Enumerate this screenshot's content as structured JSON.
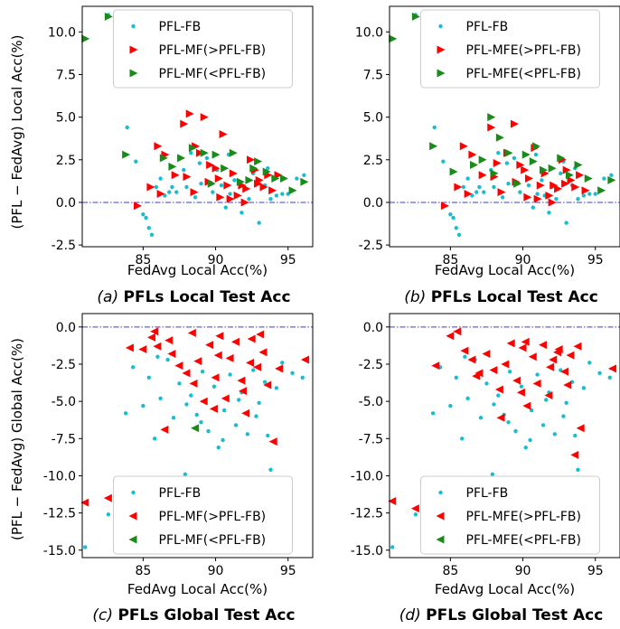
{
  "figure": {
    "ylabel_top": "(PFL − FedAvg) Local Acc(%)",
    "ylabel_bottom": "(PFL − FedAvg) Global Acc(%)"
  },
  "chart_data": [
    {
      "id": "a",
      "type": "scatter",
      "caption_letter": "(a)",
      "caption_title": "PFLs Local Test Acc",
      "xlabel": "FedAvg Local Acc(%)",
      "ylabel": "(PFL − FedAvg) Local Acc(%)",
      "xlim": [
        80.8,
        96.7
      ],
      "ylim": [
        -2.6,
        11.5
      ],
      "xticks": [
        85,
        90,
        95
      ],
      "yticks": [
        -2.5,
        0.0,
        2.5,
        5.0,
        7.5,
        10.0
      ],
      "hline": 0,
      "legend_position": "top-center",
      "colors": {
        "fb": "#17becf",
        "gt": "#ff0000",
        "lt": "#1a8a1a",
        "hline": "#3b3bd9"
      },
      "series": [
        {
          "name": "PFL-FB",
          "marker": "dot",
          "color": "#17becf",
          "x": [
            81.0,
            82.6,
            83.9,
            84.5,
            85.0,
            85.2,
            85.4,
            85.6,
            85.9,
            86.2,
            86.5,
            87.0,
            87.3,
            87.8,
            88.0,
            88.3,
            88.6,
            89.0,
            89.4,
            89.8,
            90.1,
            90.4,
            90.7,
            91.0,
            91.3,
            91.5,
            91.8,
            92.0,
            92.3,
            92.6,
            93.0,
            93.4,
            93.8,
            94.2,
            94.6,
            95.0,
            95.6,
            96.1,
            88.9,
            90.9,
            92.8,
            86.8,
            93.6
          ],
          "y": [
            9.6,
            11.0,
            4.4,
            2.4,
            -0.7,
            -0.9,
            -1.5,
            -1.9,
            0.9,
            1.4,
            0.4,
            0.9,
            0.6,
            1.9,
            0.9,
            2.9,
            0.3,
            1.1,
            2.6,
            0.6,
            1.9,
            1.0,
            -0.3,
            0.5,
            1.3,
            0.4,
            -0.6,
            0.9,
            0.2,
            1.7,
            -1.2,
            1.0,
            0.2,
            0.4,
            0.5,
            0.5,
            1.4,
            1.6,
            2.3,
            2.8,
            2.4,
            0.6,
            2.0
          ]
        },
        {
          "name": "PFL-MF(>PFL-FB)",
          "marker": "tri-right",
          "color": "#ff0000",
          "x": [
            84.6,
            85.5,
            86.0,
            86.5,
            87.2,
            87.8,
            88.2,
            88.5,
            88.9,
            89.2,
            89.6,
            90.0,
            90.2,
            90.5,
            90.8,
            91.2,
            91.5,
            91.8,
            92.1,
            92.4,
            92.7,
            93.0,
            93.3,
            93.6,
            93.9,
            94.3,
            88.0,
            89.5,
            91.0,
            92.0,
            86.2,
            90.3,
            92.9,
            88.6
          ],
          "y": [
            -0.2,
            0.9,
            3.3,
            2.8,
            1.6,
            4.6,
            5.2,
            0.6,
            2.9,
            5.0,
            2.2,
            2.0,
            1.4,
            4.0,
            1.0,
            1.7,
            0.4,
            1.0,
            0.8,
            2.5,
            1.9,
            1.3,
            0.9,
            1.6,
            0.7,
            1.6,
            1.5,
            1.2,
            0.2,
            0.0,
            0.5,
            0.3,
            1.1,
            3.3
          ]
        },
        {
          "name": "PFL-MF(<PFL-FB)",
          "marker": "tri-right",
          "color": "#1a8a1a",
          "x": [
            81.0,
            82.6,
            83.8,
            87.0,
            87.6,
            88.4,
            89.2,
            90.0,
            90.6,
            91.2,
            91.7,
            92.3,
            92.9,
            93.5,
            94.1,
            94.7,
            95.3,
            96.1,
            86.4,
            89.7,
            92.6
          ],
          "y": [
            9.6,
            10.9,
            2.8,
            2.1,
            2.6,
            3.2,
            2.9,
            2.8,
            2.0,
            2.9,
            1.2,
            1.3,
            2.4,
            1.8,
            1.4,
            1.4,
            0.7,
            1.2,
            2.6,
            1.1,
            2.0
          ]
        }
      ]
    },
    {
      "id": "b",
      "type": "scatter",
      "caption_letter": "(b)",
      "caption_title": "PFLs Local Test Acc",
      "xlabel": "FedAvg Local Acc(%)",
      "ylabel": "",
      "xlim": [
        80.8,
        96.7
      ],
      "ylim": [
        -2.6,
        11.5
      ],
      "xticks": [
        85,
        90,
        95
      ],
      "yticks": [
        -2.5,
        0.0,
        2.5,
        5.0,
        7.5,
        10.0
      ],
      "hline": 0,
      "legend_position": "top-center",
      "colors": {
        "fb": "#17becf",
        "gt": "#ff0000",
        "lt": "#1a8a1a",
        "hline": "#3b3bd9"
      },
      "series": [
        {
          "name": "PFL-FB",
          "marker": "dot",
          "color": "#17becf",
          "x": [
            81.0,
            82.6,
            83.9,
            84.5,
            85.0,
            85.2,
            85.4,
            85.6,
            85.9,
            86.2,
            86.5,
            87.0,
            87.3,
            87.8,
            88.0,
            88.3,
            88.6,
            89.0,
            89.4,
            89.8,
            90.1,
            90.4,
            90.7,
            91.0,
            91.3,
            91.5,
            91.8,
            92.0,
            92.3,
            92.6,
            93.0,
            93.4,
            93.8,
            94.2,
            94.6,
            95.0,
            95.6,
            96.1,
            88.9,
            90.9,
            92.8,
            86.8,
            93.6
          ],
          "y": [
            9.6,
            11.0,
            4.4,
            2.4,
            -0.7,
            -0.9,
            -1.5,
            -1.9,
            0.9,
            1.4,
            0.4,
            0.9,
            0.6,
            1.9,
            0.9,
            2.9,
            0.3,
            1.1,
            2.6,
            0.6,
            1.9,
            1.0,
            -0.3,
            0.5,
            1.3,
            0.4,
            -0.6,
            0.9,
            0.2,
            1.7,
            -1.2,
            1.0,
            0.2,
            0.4,
            0.5,
            0.5,
            1.4,
            1.6,
            2.3,
            2.8,
            2.4,
            0.6,
            2.0
          ]
        },
        {
          "name": "PFL-MFE(>PFL-FB)",
          "marker": "tri-right",
          "color": "#ff0000",
          "x": [
            84.6,
            85.5,
            85.9,
            86.5,
            87.2,
            87.8,
            88.2,
            88.5,
            88.9,
            89.4,
            89.8,
            90.1,
            90.4,
            90.8,
            91.2,
            91.5,
            91.8,
            92.1,
            92.4,
            92.7,
            93.0,
            93.3,
            93.6,
            93.9,
            94.3,
            88.0,
            89.5,
            91.0,
            92.0,
            86.2,
            90.3,
            92.9
          ],
          "y": [
            -0.2,
            0.9,
            3.3,
            2.8,
            1.6,
            4.4,
            2.3,
            0.6,
            2.9,
            4.6,
            2.2,
            1.9,
            1.4,
            3.2,
            1.0,
            1.7,
            0.4,
            1.0,
            0.8,
            2.5,
            1.9,
            1.3,
            0.9,
            1.6,
            0.7,
            1.5,
            1.2,
            0.2,
            0.0,
            0.5,
            0.3,
            1.1
          ]
        },
        {
          "name": "PFL-MFE(<PFL-FB)",
          "marker": "tri-right",
          "color": "#1a8a1a",
          "x": [
            81.0,
            82.6,
            83.8,
            85.2,
            86.6,
            87.2,
            87.8,
            88.4,
            89.0,
            89.6,
            90.2,
            90.9,
            91.4,
            92.0,
            92.6,
            93.2,
            93.8,
            94.5,
            95.4,
            96.1,
            88.0,
            90.7
          ],
          "y": [
            9.6,
            10.9,
            3.3,
            1.8,
            2.2,
            2.5,
            5.0,
            3.8,
            2.9,
            1.1,
            2.8,
            3.3,
            1.9,
            2.0,
            2.6,
            1.6,
            2.2,
            1.4,
            0.7,
            1.3,
            1.7,
            2.4
          ]
        }
      ]
    },
    {
      "id": "c",
      "type": "scatter",
      "caption_letter": "(c)",
      "caption_title": "PFLs Global Test Acc",
      "xlabel": "FedAvg Local Acc(%)",
      "ylabel": "(PFL − FedAvg) Global Acc(%)",
      "xlim": [
        80.8,
        96.7
      ],
      "ylim": [
        -15.5,
        0.9
      ],
      "xticks": [
        85,
        90,
        95
      ],
      "yticks": [
        -15.0,
        -12.5,
        -10.0,
        -7.5,
        -5.0,
        -2.5,
        0.0
      ],
      "hline": 0,
      "legend_position": "bottom-center",
      "colors": {
        "fb": "#17becf",
        "gt": "#ff0000",
        "lt": "#1a8a1a",
        "hline": "#3b3bd9"
      },
      "series": [
        {
          "name": "PFL-FB",
          "marker": "dot",
          "color": "#17becf",
          "x": [
            81.0,
            82.6,
            83.8,
            84.3,
            85.0,
            85.4,
            85.8,
            86.2,
            86.7,
            87.1,
            87.5,
            87.9,
            88.3,
            88.7,
            89.1,
            89.5,
            89.9,
            90.2,
            90.6,
            91.0,
            91.4,
            91.8,
            92.2,
            92.6,
            93.0,
            93.4,
            93.8,
            94.2,
            94.6,
            95.3,
            96.0,
            88.0,
            89.0,
            90.5,
            91.6,
            92.8,
            86.0,
            93.6
          ],
          "y": [
            -14.8,
            -12.6,
            -5.8,
            -2.7,
            -5.3,
            -3.4,
            -7.5,
            -4.8,
            -2.2,
            -6.1,
            -3.8,
            -9.9,
            -4.6,
            -5.9,
            -3.0,
            -7.0,
            -4.0,
            -8.1,
            -5.6,
            -3.2,
            -6.6,
            -4.4,
            -7.2,
            -2.9,
            -5.1,
            -3.7,
            -9.6,
            -4.1,
            -2.4,
            -3.1,
            -3.4,
            -5.2,
            -6.4,
            -7.6,
            -4.9,
            -6.0,
            -2.0,
            -7.3
          ]
        },
        {
          "name": "PFL-MF(>PFL-FB)",
          "marker": "tri-left",
          "color": "#ff0000",
          "x": [
            81.0,
            82.6,
            84.1,
            85.0,
            85.6,
            86.0,
            86.5,
            87.0,
            87.5,
            88.0,
            88.4,
            88.8,
            89.2,
            89.6,
            90.0,
            90.3,
            90.7,
            91.0,
            91.4,
            91.8,
            92.1,
            92.5,
            92.9,
            93.3,
            93.6,
            94.0,
            94.4,
            96.2,
            86.8,
            88.5,
            90.2,
            91.9,
            93.1,
            89.9,
            92.4,
            85.8
          ],
          "y": [
            -11.8,
            -11.5,
            -1.4,
            -1.5,
            -0.7,
            -1.3,
            -6.9,
            -1.8,
            -2.6,
            -3.1,
            -0.4,
            -2.3,
            -5.0,
            -1.2,
            -3.4,
            -0.6,
            -4.8,
            -2.1,
            -1.0,
            -3.6,
            -5.8,
            -0.8,
            -2.7,
            -1.7,
            -3.9,
            -7.7,
            -2.8,
            -2.2,
            -0.9,
            -3.8,
            -1.9,
            -4.3,
            -0.5,
            -5.5,
            -2.4,
            -0.3
          ]
        },
        {
          "name": "PFL-MF(<PFL-FB)",
          "marker": "tri-left",
          "color": "#1a8a1a",
          "x": [
            88.6
          ],
          "y": [
            -6.8
          ]
        }
      ]
    },
    {
      "id": "d",
      "type": "scatter",
      "caption_letter": "(d)",
      "caption_title": "PFLs Global Test Acc",
      "xlabel": "FedAvg Local Acc(%)",
      "ylabel": "",
      "xlim": [
        80.8,
        96.7
      ],
      "ylim": [
        -15.5,
        0.9
      ],
      "xticks": [
        85,
        90,
        95
      ],
      "yticks": [
        -15.0,
        -12.5,
        -10.0,
        -7.5,
        -5.0,
        -2.5,
        0.0
      ],
      "hline": 0,
      "legend_position": "bottom-center",
      "colors": {
        "fb": "#17becf",
        "gt": "#ff0000",
        "lt": "#1a8a1a",
        "hline": "#3b3bd9"
      },
      "series": [
        {
          "name": "PFL-FB",
          "marker": "dot",
          "color": "#17becf",
          "x": [
            81.0,
            82.6,
            83.8,
            84.3,
            85.0,
            85.4,
            85.8,
            86.2,
            86.7,
            87.1,
            87.5,
            87.9,
            88.3,
            88.7,
            89.1,
            89.5,
            89.9,
            90.2,
            90.6,
            91.0,
            91.4,
            91.8,
            92.2,
            92.6,
            93.0,
            93.4,
            93.8,
            94.2,
            94.6,
            95.3,
            96.0,
            88.0,
            89.0,
            90.5,
            91.6,
            92.8,
            86.0,
            93.6
          ],
          "y": [
            -14.8,
            -12.6,
            -5.8,
            -2.7,
            -5.3,
            -3.4,
            -7.5,
            -4.8,
            -2.2,
            -6.1,
            -3.8,
            -9.9,
            -4.6,
            -5.9,
            -3.0,
            -7.0,
            -4.0,
            -8.1,
            -5.6,
            -3.2,
            -6.6,
            -4.4,
            -7.2,
            -2.9,
            -5.1,
            -3.7,
            -9.6,
            -4.1,
            -2.4,
            -3.1,
            -3.4,
            -5.2,
            -6.4,
            -7.6,
            -4.9,
            -6.0,
            -2.0,
            -7.3
          ]
        },
        {
          "name": "PFL-MFE(>PFL-FB)",
          "marker": "tri-left",
          "color": "#ff0000",
          "x": [
            81.0,
            82.6,
            84.0,
            85.0,
            85.5,
            86.0,
            86.5,
            87.0,
            87.5,
            88.0,
            88.4,
            88.8,
            89.2,
            89.6,
            90.0,
            90.3,
            90.7,
            91.0,
            91.4,
            91.8,
            92.1,
            92.5,
            92.9,
            93.3,
            93.6,
            94.0,
            96.2,
            86.8,
            88.5,
            90.2,
            91.9,
            93.1,
            89.9,
            92.4,
            93.8
          ],
          "y": [
            -11.7,
            -12.2,
            -2.6,
            -0.6,
            -0.3,
            -1.6,
            -2.2,
            -3.1,
            -1.8,
            -2.9,
            -4.2,
            -2.5,
            -1.1,
            -3.6,
            -1.4,
            -5.3,
            -2.0,
            -3.8,
            -1.2,
            -4.6,
            -2.2,
            -1.5,
            -3.0,
            -1.9,
            -8.6,
            -6.8,
            -2.8,
            -3.3,
            -6.1,
            -1.0,
            -2.7,
            -3.9,
            -4.4,
            -1.7,
            -1.3
          ]
        },
        {
          "name": "PFL-MFE(<PFL-FB)",
          "marker": "tri-left",
          "color": "#1a8a1a",
          "x": [],
          "y": []
        }
      ]
    }
  ]
}
